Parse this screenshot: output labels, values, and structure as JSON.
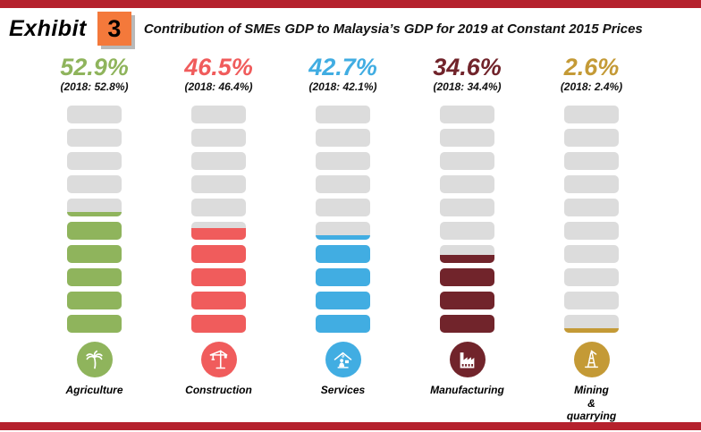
{
  "header": {
    "exhibit_label": "Exhibit",
    "exhibit_number": "3",
    "title": "Contribution of SMEs GDP to Malaysia’s GDP for 2019 at Constant 2015 Prices"
  },
  "chart_data": {
    "type": "bar",
    "title": "Contribution of SMEs GDP to Malaysia’s GDP for 2019 at Constant 2015 Prices",
    "unit": "%",
    "ylim": [
      0,
      100
    ],
    "segments_per_column": 10,
    "segment_value": 10,
    "categories": [
      "Agriculture",
      "Construction",
      "Services",
      "Manufacturing",
      "Mining & quarrying"
    ],
    "series": [
      {
        "name": "2019",
        "values": [
          52.9,
          46.5,
          42.7,
          34.6,
          2.6
        ]
      },
      {
        "name": "2018",
        "values": [
          52.8,
          46.4,
          42.1,
          34.4,
          2.4
        ]
      }
    ],
    "legend_position": "none",
    "grid": false
  },
  "columns": [
    {
      "id": "agriculture",
      "label_lines": [
        "Agriculture"
      ],
      "value_2019": "52.9%",
      "note_2018": "(2018: 52.8%)",
      "fill_percent": 52.9,
      "color": "#8fb45c",
      "icon": "palm-tree-icon"
    },
    {
      "id": "construction",
      "label_lines": [
        "Construction"
      ],
      "value_2019": "46.5%",
      "note_2018": "(2018: 46.4%)",
      "fill_percent": 46.5,
      "color": "#f05c5c",
      "icon": "crane-icon"
    },
    {
      "id": "services",
      "label_lines": [
        "Services"
      ],
      "value_2019": "42.7%",
      "note_2018": "(2018: 42.1%)",
      "fill_percent": 42.7,
      "color": "#41ade2",
      "icon": "services-desk-icon"
    },
    {
      "id": "manufacturing",
      "label_lines": [
        "Manufacturing"
      ],
      "value_2019": "34.6%",
      "note_2018": "(2018: 34.4%)",
      "fill_percent": 34.6,
      "color": "#71242b",
      "icon": "factory-icon"
    },
    {
      "id": "mining",
      "label_lines": [
        "Mining",
        "&",
        "quarrying"
      ],
      "value_2019": "2.6%",
      "note_2018": "(2018: 2.4%)",
      "fill_percent": 2.6,
      "color": "#c49a36",
      "icon": "oil-derrick-icon"
    }
  ],
  "colors": {
    "border_bar": "#b5212d",
    "exhibit_box": "#f4793b",
    "segment_empty": "#dcdcdc"
  }
}
